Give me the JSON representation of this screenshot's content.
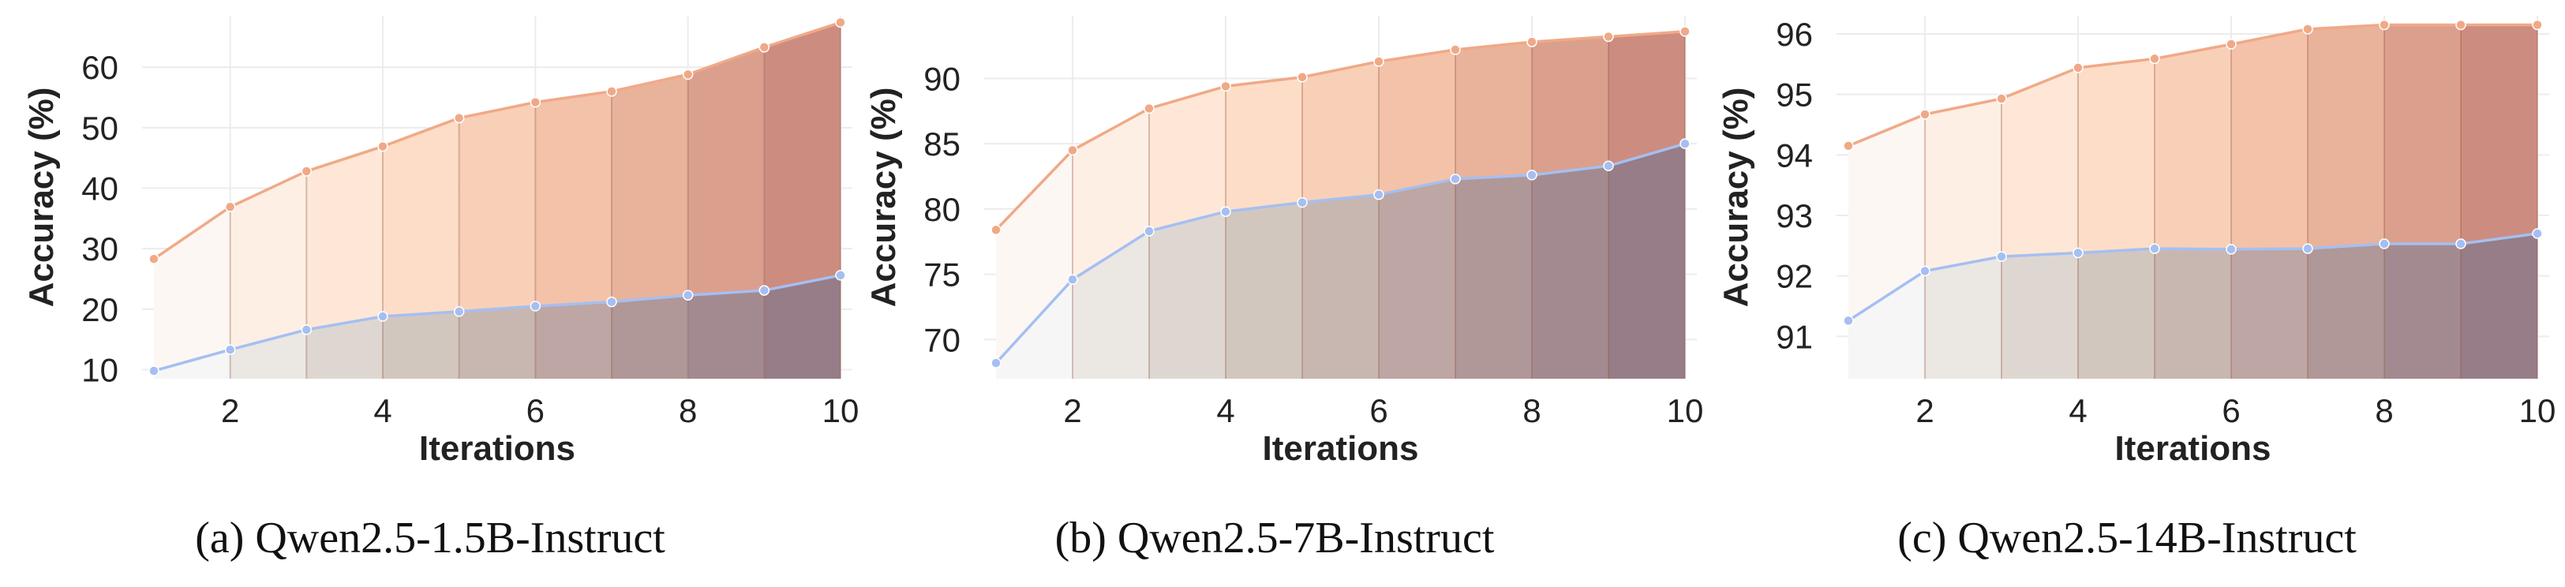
{
  "chart_data": [
    {
      "type": "area",
      "caption": "(a) Qwen2.5-1.5B-Instruct",
      "xlabel": "Iterations",
      "ylabel": "Accuracy (%)",
      "x": [
        1,
        2,
        3,
        4,
        5,
        6,
        7,
        8,
        9,
        10
      ],
      "xticks": [
        2,
        4,
        6,
        8,
        10
      ],
      "ylim": [
        8.5,
        68.5
      ],
      "yticks": [
        10,
        20,
        30,
        40,
        50,
        60
      ],
      "grid": true,
      "series": [
        {
          "values": [
            28.3,
            36.9,
            42.8,
            46.9,
            51.6,
            54.2,
            56.0,
            58.8,
            63.3,
            67.4
          ],
          "color": "#f0a987"
        },
        {
          "values": [
            9.8,
            13.3,
            16.6,
            18.8,
            19.6,
            20.5,
            21.2,
            22.3,
            23.1,
            25.6
          ],
          "color": "#a5bff2"
        }
      ]
    },
    {
      "type": "area",
      "caption": "(b) Qwen2.5-7B-Instruct",
      "xlabel": "Iterations",
      "ylabel": "Accuracy (%)",
      "x": [
        1,
        2,
        3,
        4,
        5,
        6,
        7,
        8,
        9,
        10
      ],
      "xticks": [
        2,
        4,
        6,
        8,
        10
      ],
      "ylim": [
        67.0,
        94.8
      ],
      "yticks": [
        70,
        75,
        80,
        85,
        90
      ],
      "grid": true,
      "series": [
        {
          "values": [
            78.4,
            84.5,
            87.7,
            89.4,
            90.1,
            91.3,
            92.2,
            92.8,
            93.2,
            93.6
          ],
          "color": "#f0a987"
        },
        {
          "values": [
            68.2,
            74.6,
            78.3,
            79.8,
            80.5,
            81.1,
            82.3,
            82.6,
            83.3,
            85.0
          ],
          "color": "#a5bff2"
        }
      ]
    },
    {
      "type": "area",
      "caption": "(c) Qwen2.5-14B-Instruct",
      "xlabel": "Iterations",
      "ylabel": "Accuracy (%)",
      "x": [
        1,
        2,
        3,
        4,
        5,
        6,
        7,
        8,
        9,
        10
      ],
      "xticks": [
        2,
        4,
        6,
        8,
        10
      ],
      "ylim": [
        90.3,
        96.3
      ],
      "yticks": [
        91,
        92,
        93,
        94,
        95,
        96
      ],
      "grid": true,
      "series": [
        {
          "values": [
            94.15,
            94.67,
            94.93,
            95.44,
            95.59,
            95.83,
            96.08,
            96.15,
            96.15,
            96.15
          ],
          "color": "#f0a987"
        },
        {
          "values": [
            91.26,
            92.08,
            92.32,
            92.38,
            92.45,
            92.44,
            92.45,
            92.53,
            92.53,
            92.7
          ],
          "color": "#a5bff2"
        }
      ]
    }
  ]
}
